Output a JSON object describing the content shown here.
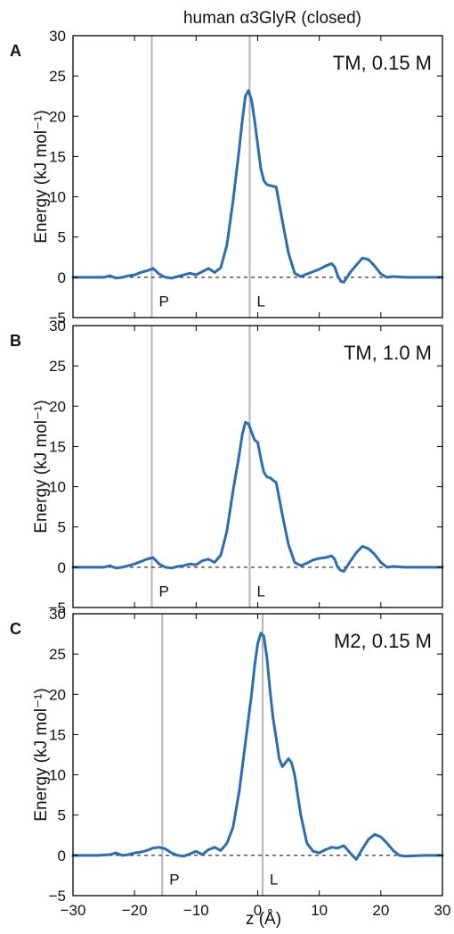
{
  "figure": {
    "title": "human α3GlyR (closed)",
    "xlabel": "z (Å)",
    "ylabel": "Energy (kJ mol⁻¹)",
    "line_color": "#2b6db2",
    "marker_color": "#b5b5b5",
    "baseline_color": "#000000"
  },
  "chart_data": [
    {
      "type": "line",
      "panel_letter": "A",
      "annotation": "TM, 0.15 M",
      "xlim": [
        -30,
        30
      ],
      "ylim": [
        -5,
        30
      ],
      "xticks": [
        -30,
        -20,
        -10,
        0,
        10,
        20,
        30
      ],
      "yticks": [
        -5,
        0,
        5,
        10,
        15,
        20,
        25,
        30
      ],
      "reference_lines": [
        {
          "label": "P",
          "x": -17.2
        },
        {
          "label": "L",
          "x": -1.3
        }
      ],
      "baseline": 0,
      "series": [
        {
          "x": [
            -30,
            -27,
            -25,
            -24,
            -23,
            -22,
            -21,
            -20,
            -19,
            -18,
            -17,
            -16,
            -15,
            -14,
            -13,
            -12,
            -11,
            -10,
            -9,
            -8,
            -7,
            -6,
            -5,
            -4,
            -3,
            -2.5,
            -2,
            -1.5,
            -1,
            -0.5,
            0,
            0.5,
            1,
            1.5,
            2,
            3,
            4,
            5,
            6,
            7,
            8,
            9,
            10,
            11,
            12,
            12.5,
            13,
            13.5,
            14,
            15,
            16,
            17,
            18,
            19,
            20,
            21,
            22,
            24,
            27,
            30
          ],
          "y": [
            0,
            0,
            0,
            0.2,
            -0.1,
            0,
            0.2,
            0.3,
            0.6,
            0.8,
            1.1,
            0.4,
            0,
            -0.1,
            0.1,
            0.3,
            0.5,
            0.3,
            0.7,
            1.1,
            0.6,
            1.2,
            4,
            9.5,
            16,
            19.5,
            22.5,
            23.2,
            22,
            19.5,
            16.5,
            13.5,
            12,
            11.5,
            11.4,
            11.2,
            7,
            3,
            0.5,
            0.1,
            0.4,
            0.7,
            1,
            1.4,
            1.7,
            1.3,
            0.2,
            -0.5,
            -0.6,
            0.6,
            1.5,
            2.4,
            2.2,
            1.4,
            0.4,
            0,
            0.1,
            0,
            0,
            0
          ]
        }
      ]
    },
    {
      "type": "line",
      "panel_letter": "B",
      "annotation": "TM, 1.0 M",
      "xlim": [
        -30,
        30
      ],
      "ylim": [
        -5,
        30
      ],
      "xticks": [
        -30,
        -20,
        -10,
        0,
        10,
        20,
        30
      ],
      "yticks": [
        -5,
        0,
        5,
        10,
        15,
        20,
        25,
        30
      ],
      "reference_lines": [
        {
          "label": "P",
          "x": -17.2
        },
        {
          "label": "L",
          "x": -1.3
        }
      ],
      "baseline": 0,
      "series": [
        {
          "x": [
            -30,
            -27,
            -25,
            -24,
            -23,
            -22,
            -21,
            -20,
            -19,
            -18,
            -17,
            -16,
            -15,
            -14,
            -13,
            -12,
            -11,
            -10,
            -9,
            -8,
            -7,
            -6,
            -5,
            -4,
            -3,
            -2.5,
            -2,
            -1.5,
            -1,
            -0.5,
            0,
            0.5,
            1,
            1.5,
            2,
            3,
            4,
            5,
            6,
            7,
            8,
            9,
            10,
            11,
            12,
            12.5,
            13,
            13.5,
            14,
            15,
            16,
            17,
            18,
            19,
            20,
            21,
            22,
            24,
            27,
            30
          ],
          "y": [
            0,
            0,
            0,
            0.2,
            -0.1,
            0,
            0.2,
            0.4,
            0.7,
            1,
            1.2,
            0.4,
            0,
            -0.1,
            0.1,
            0.2,
            0.4,
            0.3,
            0.8,
            1,
            0.6,
            1.5,
            4.5,
            9.5,
            14,
            16.5,
            18,
            17.8,
            16.8,
            15.8,
            15.5,
            13.5,
            11.8,
            11.2,
            11.1,
            10.5,
            6.5,
            2.8,
            0.6,
            0.2,
            0.5,
            0.9,
            1.1,
            1.2,
            1.4,
            1,
            0,
            -0.4,
            -0.5,
            0.7,
            1.8,
            2.6,
            2.3,
            1.6,
            0.6,
            0,
            0.1,
            0,
            0,
            0
          ]
        }
      ]
    },
    {
      "type": "line",
      "panel_letter": "C",
      "annotation": "M2, 0.15 M",
      "xlim": [
        -30,
        30
      ],
      "ylim": [
        -5,
        30
      ],
      "xticks": [
        -30,
        -20,
        -10,
        0,
        10,
        20,
        30
      ],
      "yticks": [
        -5,
        0,
        5,
        10,
        15,
        20,
        25,
        30
      ],
      "reference_lines": [
        {
          "label": "P",
          "x": -15.5
        },
        {
          "label": "L",
          "x": 0.8
        }
      ],
      "baseline": 0,
      "series": [
        {
          "x": [
            -30,
            -26,
            -24,
            -23,
            -22,
            -21,
            -20,
            -19,
            -18,
            -17,
            -16,
            -15,
            -14,
            -13,
            -12,
            -11,
            -10,
            -9,
            -8,
            -7,
            -6,
            -5,
            -4,
            -3,
            -2,
            -1,
            -0.5,
            0,
            0.5,
            1,
            1.5,
            2,
            2.5,
            3,
            3.5,
            4,
            4.5,
            5,
            5.5,
            6,
            7,
            8,
            9,
            10,
            11,
            12,
            13,
            14,
            15,
            16,
            17,
            18,
            19,
            20,
            21,
            22,
            23,
            24,
            27,
            30
          ],
          "y": [
            0,
            0,
            0.1,
            0.3,
            0,
            0.1,
            0.3,
            0.4,
            0.6,
            0.9,
            1,
            0.8,
            0.3,
            0,
            -0.1,
            0.2,
            0.5,
            0.1,
            0.7,
            1,
            0.6,
            1.5,
            3.5,
            8,
            14,
            20,
            23.5,
            26.3,
            27.6,
            27.2,
            24.5,
            20.5,
            17,
            14.5,
            12,
            11,
            11.5,
            12,
            11.5,
            10,
            5,
            1.5,
            0.5,
            0.3,
            0.7,
            1,
            0.9,
            1.2,
            0.3,
            -0.5,
            0.8,
            2,
            2.6,
            2.3,
            1.5,
            0.6,
            0,
            -0.1,
            0,
            0
          ]
        }
      ]
    }
  ]
}
